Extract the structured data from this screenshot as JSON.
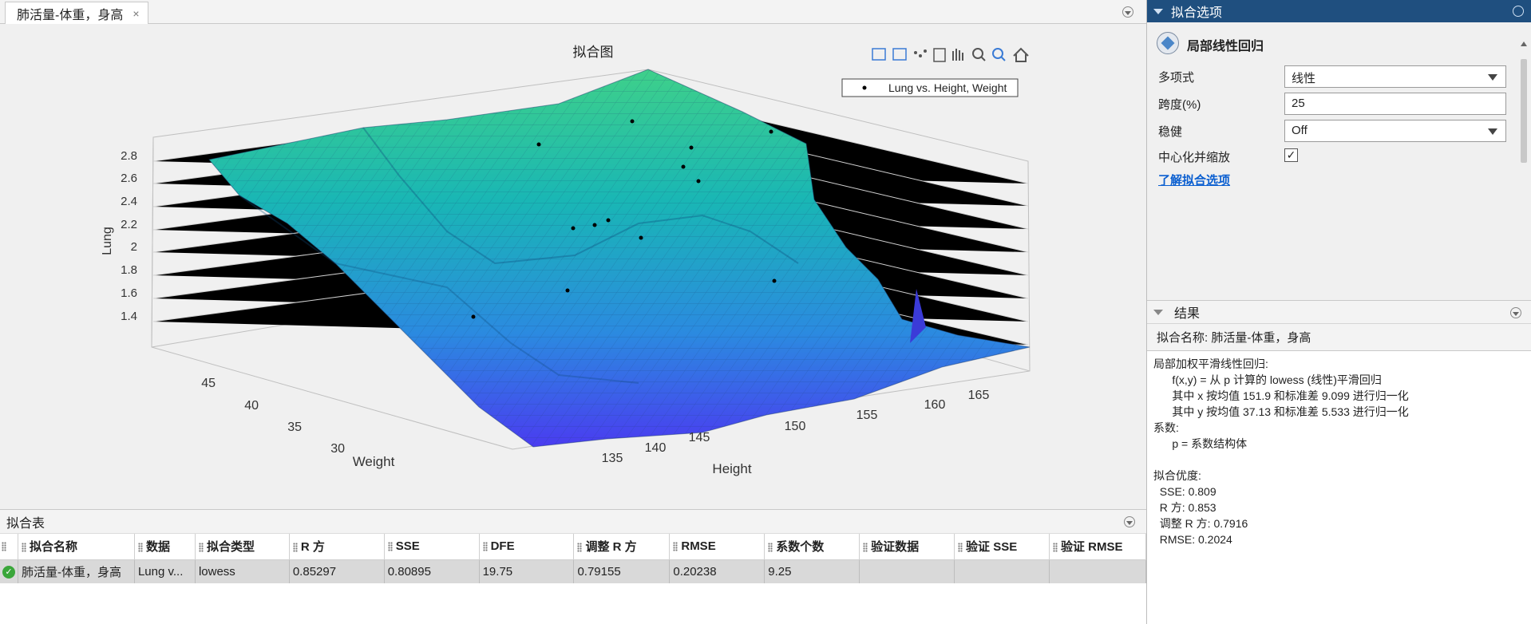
{
  "document_tab": {
    "title": "肺活量-体重，身高",
    "close": "×"
  },
  "plot": {
    "title": "拟合图",
    "legend": "Lung vs. Height, Weight",
    "zlabel": "Lung",
    "xlabel": "Height",
    "ylabel": "Weight",
    "z_ticks": [
      "2.8",
      "2.6",
      "2.4",
      "2.2",
      "2",
      "1.8",
      "1.6",
      "1.4"
    ],
    "x_ticks": [
      "135",
      "140",
      "145",
      "150",
      "155",
      "160",
      "165"
    ],
    "y_ticks": [
      "45",
      "40",
      "35",
      "30"
    ],
    "toolbar_icons": [
      "legend-icon",
      "grid-icon",
      "data-tips-icon",
      "colorbar-icon",
      "pan-icon",
      "zoom-in-icon",
      "zoom-out-icon",
      "home-icon"
    ]
  },
  "fit_table": {
    "title": "拟合表",
    "columns": [
      "拟合名称",
      "数据",
      "拟合类型",
      "R 方",
      "SSE",
      "DFE",
      "调整 R 方",
      "RMSE",
      "系数个数",
      "验证数据",
      "验证 SSE",
      "验证 RMSE"
    ],
    "rows": [
      [
        "肺活量-体重，身高",
        "Lung v...",
        "lowess",
        "0.85297",
        "0.80895",
        "19.75",
        "0.79155",
        "0.20238",
        "9.25",
        "",
        "",
        ""
      ]
    ]
  },
  "options": {
    "header": "拟合选项",
    "fit_type": "局部线性回归",
    "polynomial_label": "多项式",
    "polynomial_value": "线性",
    "span_label": "跨度(%)",
    "span_value": "25",
    "robust_label": "稳健",
    "robust_value": "Off",
    "center_label": "中心化并缩放",
    "center_checked": true,
    "learn_link": "了解拟合选项"
  },
  "results": {
    "header": "结果",
    "fit_name": "拟合名称: 肺活量-体重，身高",
    "lines": [
      "局部加权平滑线性回归:",
      "      f(x,y) = 从 p 计算的 lowess (线性)平滑回归",
      "      其中 x 按均值 151.9 和标准差 9.099 进行归一化",
      "      其中 y 按均值 37.13 和标准差 5.533 进行归一化",
      "系数:",
      "      p = 系数结构体",
      "",
      "拟合优度:",
      "  SSE: 0.809",
      "  R 方: 0.853",
      "  调整 R 方: 0.7916",
      "  RMSE: 0.2024"
    ]
  },
  "colors": {
    "surface_low": "#4a3cf0",
    "surface_high": "#3cc88a",
    "options_header": "#1f4f7f"
  }
}
